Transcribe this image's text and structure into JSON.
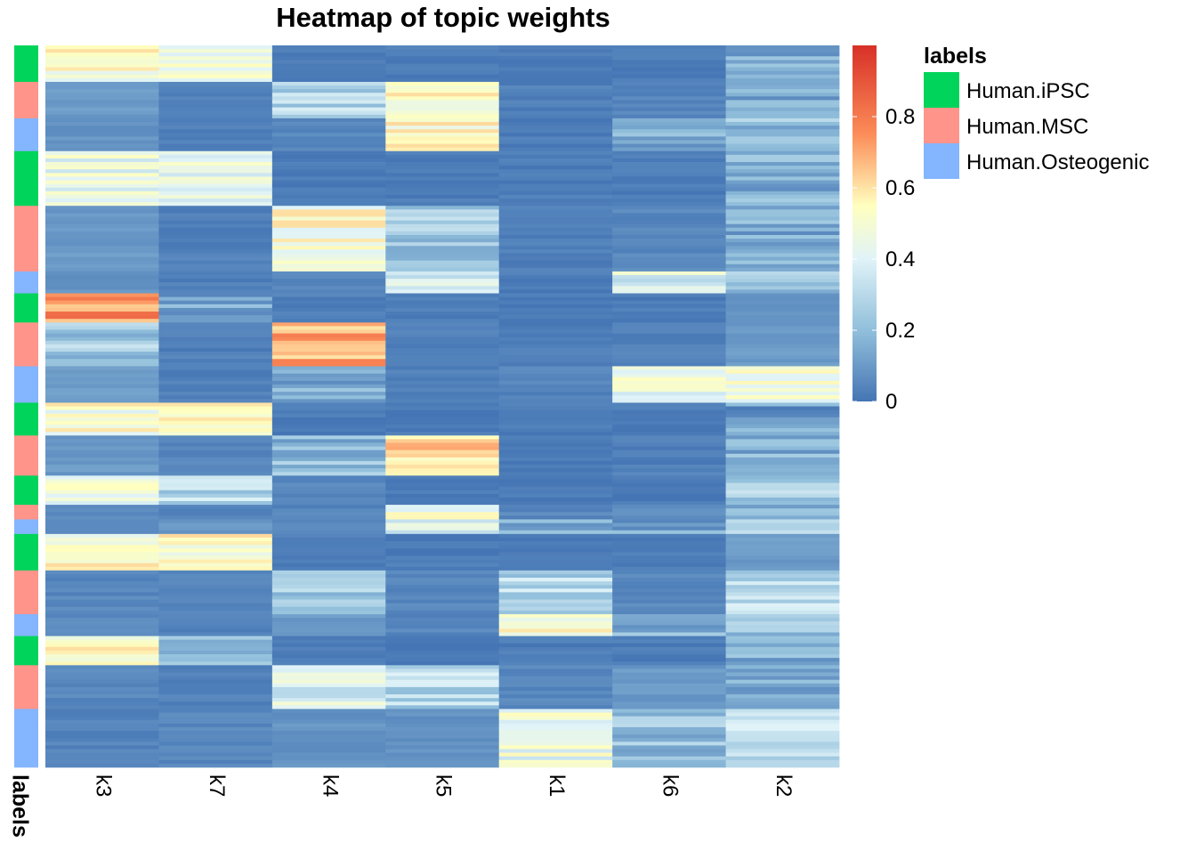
{
  "chart_data": {
    "type": "heatmap",
    "title": "Heatmap of topic weights",
    "columns": [
      "k3",
      "k7",
      "k4",
      "k5",
      "k1",
      "k6",
      "k2"
    ],
    "annotation_label": "labels",
    "color_scale": {
      "min": 0,
      "max": 1,
      "ticks": [
        "0",
        "0.2",
        "0.4",
        "0.6",
        "0.8"
      ],
      "tick_values": [
        0,
        0.2,
        0.4,
        0.6,
        0.8
      ],
      "stops": [
        {
          "value": 0.0,
          "color": "#4575b4"
        },
        {
          "value": 0.2,
          "color": "#91bfdb"
        },
        {
          "value": 0.4,
          "color": "#e0f3f8"
        },
        {
          "value": 0.55,
          "color": "#ffffbf"
        },
        {
          "value": 0.75,
          "color": "#fc8d59"
        },
        {
          "value": 1.0,
          "color": "#d73027"
        }
      ]
    },
    "legend": {
      "title": "labels",
      "position": "right",
      "items": [
        {
          "label": "Human.iPSC",
          "color": "#00d45a"
        },
        {
          "label": "Human.MSC",
          "color": "#ff958a"
        },
        {
          "label": "Human.Osteogenic",
          "color": "#84b5ff"
        }
      ]
    },
    "row_blocks": [
      {
        "label": "Human.iPSC",
        "rows": 10,
        "values": [
          0.52,
          0.45,
          0.02,
          0.02,
          0.02,
          0.02,
          0.15
        ]
      },
      {
        "label": "Human.MSC",
        "rows": 10,
        "values": [
          0.1,
          0.03,
          0.3,
          0.5,
          0.03,
          0.04,
          0.15
        ]
      },
      {
        "label": "Human.Osteogenic",
        "rows": 9,
        "values": [
          0.08,
          0.03,
          0.05,
          0.55,
          0.02,
          0.15,
          0.2
        ]
      },
      {
        "label": "Human.iPSC",
        "rows": 15,
        "values": [
          0.45,
          0.42,
          0.02,
          0.02,
          0.02,
          0.02,
          0.15
        ]
      },
      {
        "label": "Human.MSC",
        "rows": 18,
        "values": [
          0.1,
          0.03,
          0.5,
          0.25,
          0.03,
          0.05,
          0.15
        ]
      },
      {
        "label": "Human.Osteogenic",
        "rows": 6,
        "values": [
          0.08,
          0.03,
          0.05,
          0.35,
          0.02,
          0.4,
          0.2
        ]
      },
      {
        "label": "Human.iPSC",
        "rows": 8,
        "values": [
          0.75,
          0.15,
          0.03,
          0.02,
          0.02,
          0.02,
          0.08
        ]
      },
      {
        "label": "Human.MSC",
        "rows": 12,
        "values": [
          0.25,
          0.03,
          0.68,
          0.03,
          0.02,
          0.03,
          0.1
        ]
      },
      {
        "label": "Human.Osteogenic",
        "rows": 10,
        "values": [
          0.1,
          0.03,
          0.15,
          0.03,
          0.04,
          0.45,
          0.5
        ]
      },
      {
        "label": "Human.iPSC",
        "rows": 9,
        "values": [
          0.5,
          0.55,
          0.02,
          0.02,
          0.02,
          0.02,
          0.12
        ]
      },
      {
        "label": "Human.MSC",
        "rows": 11,
        "values": [
          0.1,
          0.05,
          0.2,
          0.62,
          0.02,
          0.03,
          0.18
        ]
      },
      {
        "label": "Human.iPSC",
        "rows": 8,
        "values": [
          0.45,
          0.3,
          0.05,
          0.02,
          0.02,
          0.02,
          0.25
        ]
      },
      {
        "label": "Human.MSC",
        "rows": 4,
        "values": [
          0.05,
          0.04,
          0.04,
          0.5,
          0.05,
          0.06,
          0.2
        ]
      },
      {
        "label": "Human.Osteogenic",
        "rows": 4,
        "values": [
          0.05,
          0.1,
          0.04,
          0.38,
          0.12,
          0.12,
          0.3
        ]
      },
      {
        "label": "Human.iPSC",
        "rows": 10,
        "values": [
          0.52,
          0.55,
          0.02,
          0.02,
          0.02,
          0.02,
          0.1
        ]
      },
      {
        "label": "Human.MSC",
        "rows": 12,
        "values": [
          0.05,
          0.04,
          0.25,
          0.05,
          0.3,
          0.05,
          0.3
        ]
      },
      {
        "label": "Human.Osteogenic",
        "rows": 6,
        "values": [
          0.05,
          0.04,
          0.1,
          0.05,
          0.5,
          0.15,
          0.2
        ]
      },
      {
        "label": "Human.iPSC",
        "rows": 8,
        "values": [
          0.55,
          0.25,
          0.03,
          0.02,
          0.02,
          0.02,
          0.15
        ]
      },
      {
        "label": "Human.MSC",
        "rows": 12,
        "values": [
          0.05,
          0.04,
          0.4,
          0.3,
          0.05,
          0.1,
          0.15
        ]
      },
      {
        "label": "Human.Osteogenic",
        "rows": 16,
        "values": [
          0.04,
          0.05,
          0.08,
          0.08,
          0.45,
          0.2,
          0.3
        ]
      }
    ]
  }
}
